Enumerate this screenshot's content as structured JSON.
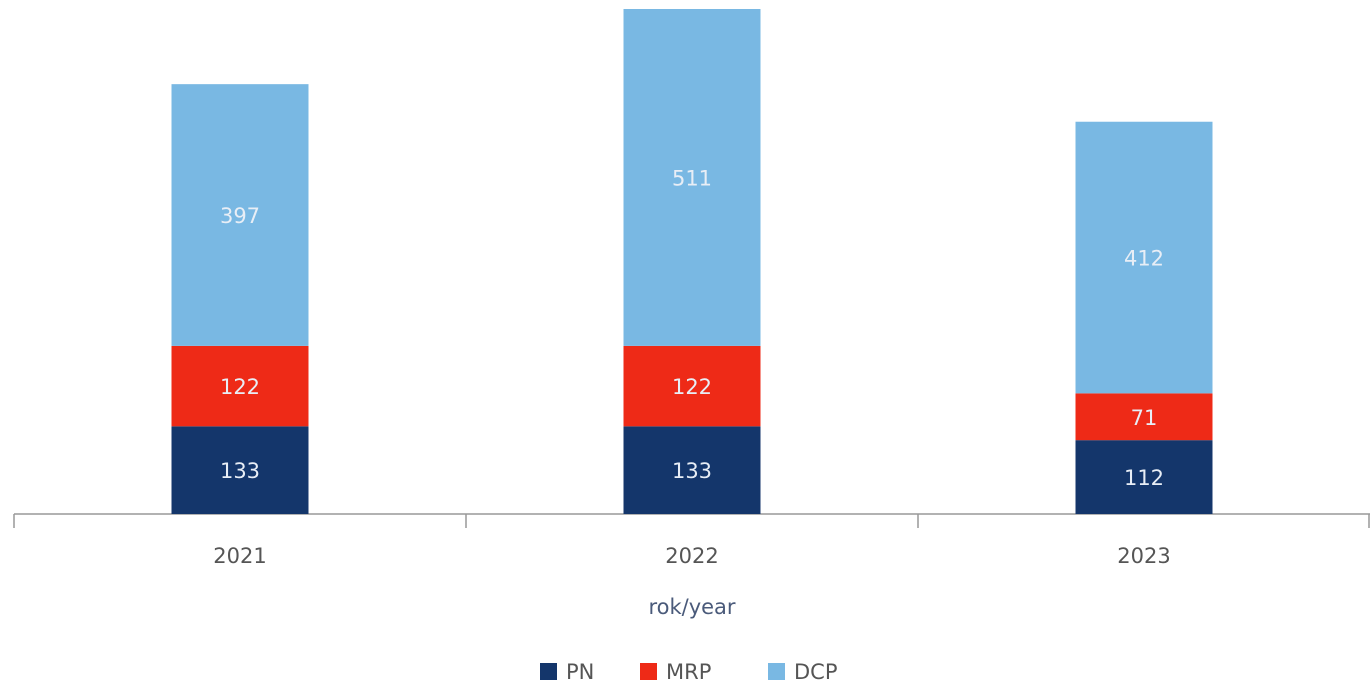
{
  "chart_data": {
    "type": "stacked_bar",
    "x_label": "rok/year",
    "categories": [
      "2021",
      "2022",
      "2023"
    ],
    "series": [
      {
        "name": "PN",
        "color": "#14366b",
        "values": [
          133,
          133,
          112
        ]
      },
      {
        "name": "MRP",
        "color": "#ee2a17",
        "values": [
          122,
          122,
          71
        ]
      },
      {
        "name": "DCP",
        "color": "#79b8e3",
        "values": [
          397,
          511,
          412
        ]
      }
    ],
    "legend": "bottom"
  }
}
